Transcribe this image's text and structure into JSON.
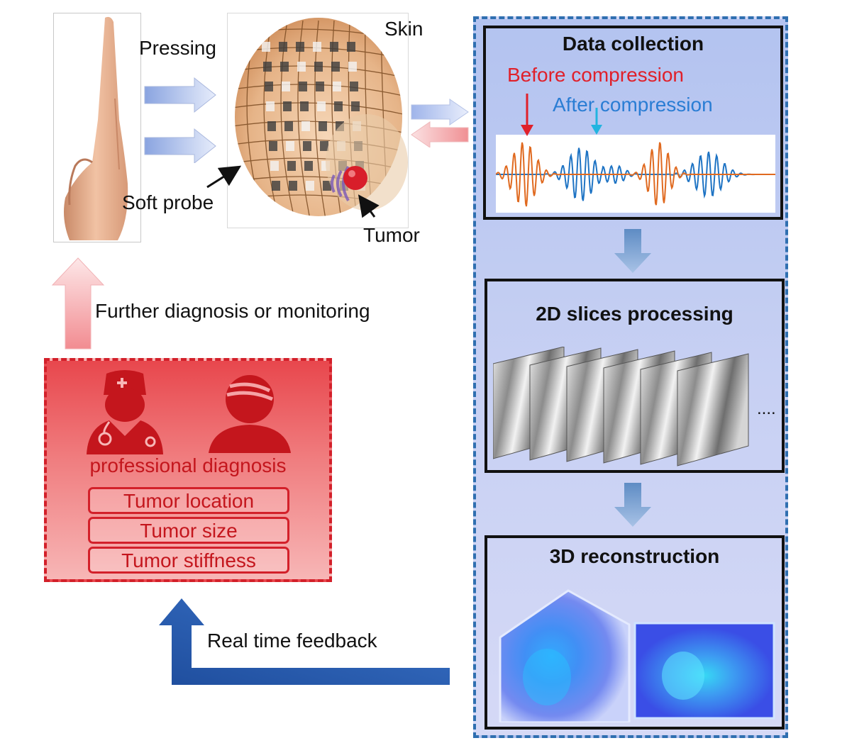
{
  "labels": {
    "pressing": "Pressing",
    "skin": "Skin",
    "soft_probe": "Soft probe",
    "tumor": "Tumor",
    "further_diagnosis": "Further diagnosis or monitoring",
    "real_time_feedback": "Real time feedback"
  },
  "workflow": {
    "data_collection": {
      "title": "Data collection",
      "before": "Before compression",
      "after": "After compression"
    },
    "slices": {
      "title": "2D slices processing",
      "ellipsis": "...."
    },
    "reconstruction": {
      "title": "3D reconstruction"
    }
  },
  "diagnosis": {
    "title": "professional diagnosis",
    "items": [
      "Tumor location",
      "Tumor size",
      "Tumor stiffness"
    ]
  },
  "colors": {
    "before_signal": "#e06a20",
    "after_signal": "#1f74c4",
    "before_text": "#e0202a",
    "after_text": "#2a7dd4",
    "diagnosis_red": "#d3202a",
    "workflow_border": "#2f6fb0",
    "feedback_arrow": "#2b5bb0"
  },
  "icons": [
    "doctor-icon",
    "patient-icon",
    "hand-icon",
    "probe-icon",
    "tumor-icon"
  ]
}
